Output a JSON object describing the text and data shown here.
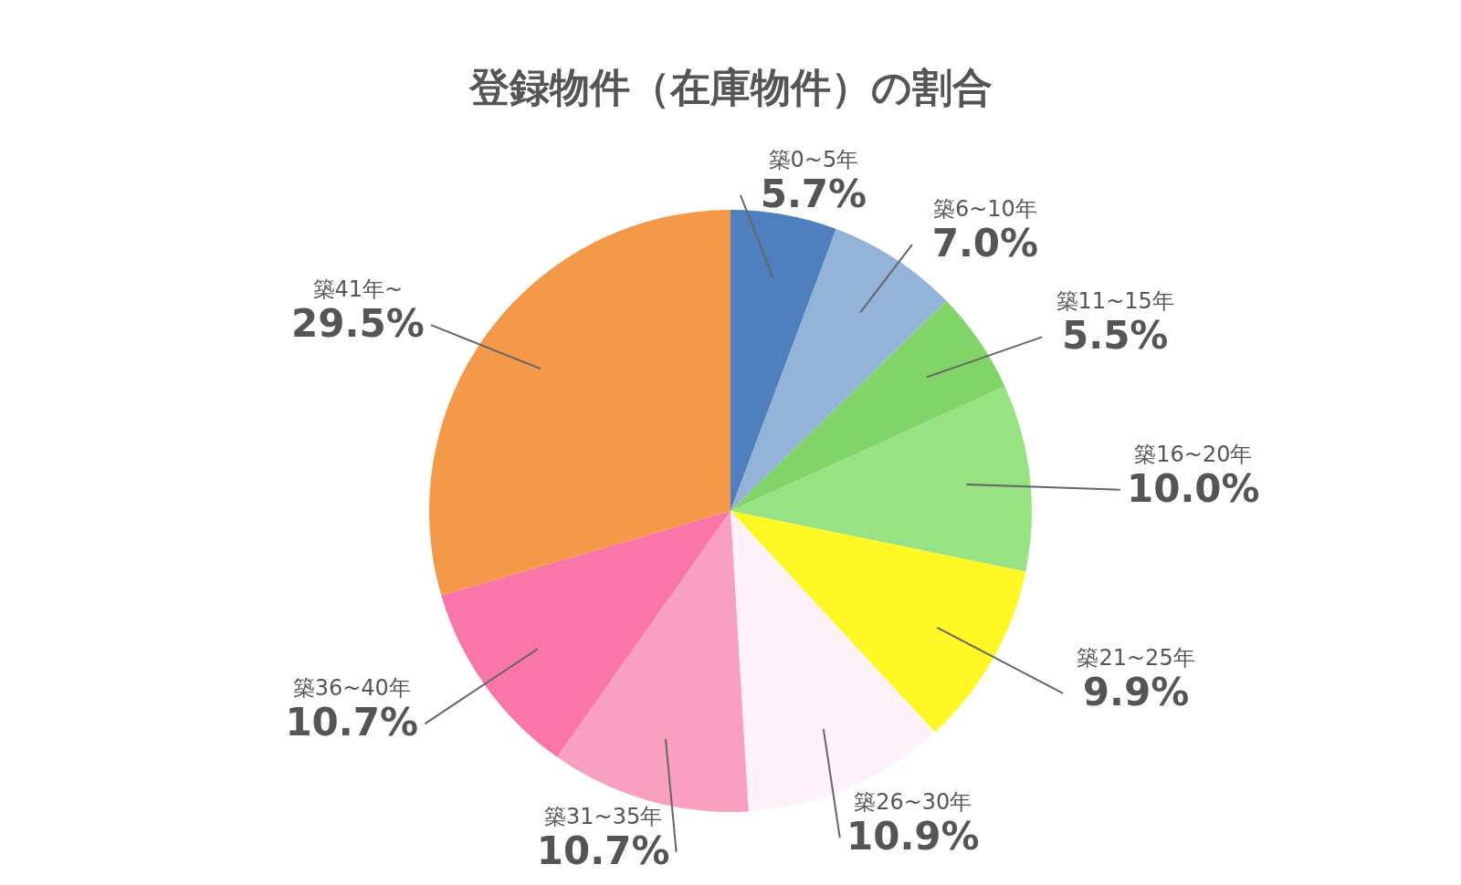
{
  "chart_data": {
    "type": "pie",
    "title": "登録物件（在庫物件）の割合",
    "categories": [
      "築0~5年",
      "築6~10年",
      "築11~15年",
      "築16~20年",
      "築21~25年",
      "築26~30年",
      "築31~35年",
      "築36~40年",
      "築41年~"
    ],
    "values": [
      5.7,
      7.0,
      5.5,
      10.0,
      9.9,
      10.9,
      10.7,
      10.7,
      29.5
    ],
    "value_labels": [
      "5.7%",
      "7.0%",
      "5.5%",
      "10.0%",
      "9.9%",
      "10.9%",
      "10.7%",
      "10.7%",
      "29.5%"
    ],
    "colors": [
      "#4f7fbd",
      "#94b3d8",
      "#80d468",
      "#97e283",
      "#fff824",
      "#fff2fb",
      "#f9a0c0",
      "#fb76a8",
      "#f49849"
    ]
  }
}
